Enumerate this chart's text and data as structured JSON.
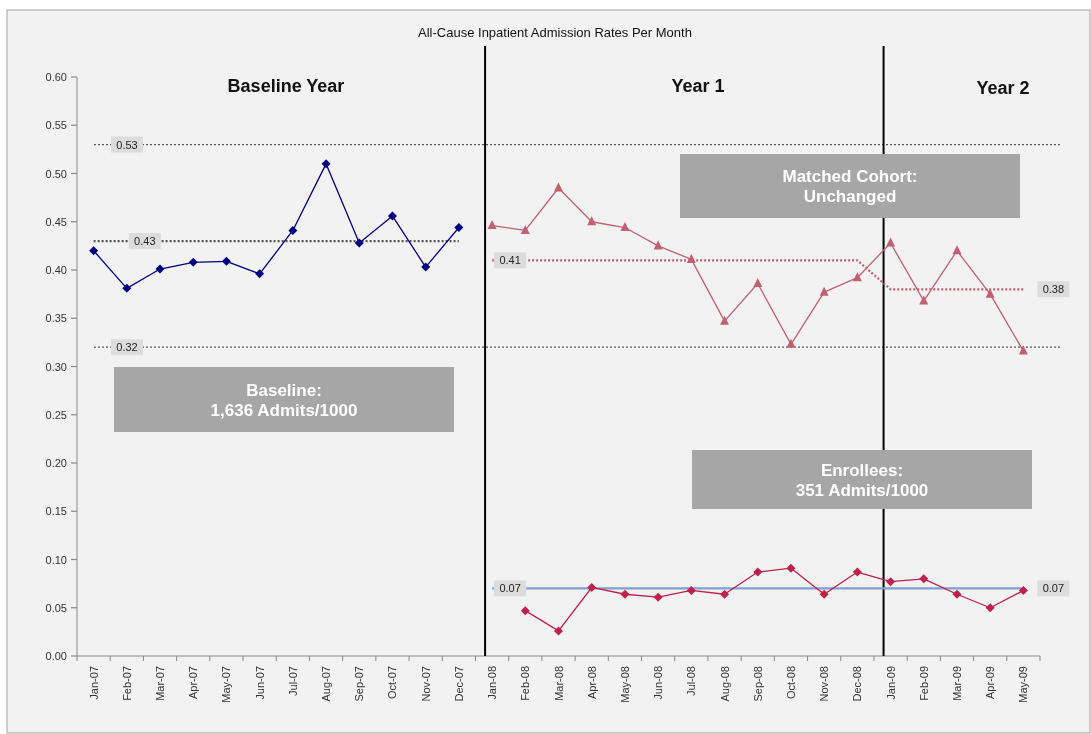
{
  "chart_data": {
    "type": "line",
    "title": "All-Cause Inpatient Admission Rates Per Month",
    "categories": [
      "Jan-07",
      "Feb-07",
      "Mar-07",
      "Apr-07",
      "May-07",
      "Jun-07",
      "Jul-07",
      "Aug-07",
      "Sep-07",
      "Oct-07",
      "Nov-07",
      "Dec-07",
      "Jan-08",
      "Feb-08",
      "Mar-08",
      "Apr-08",
      "May-08",
      "Jun-08",
      "Jul-08",
      "Aug-08",
      "Sep-08",
      "Oct-08",
      "Nov-08",
      "Dec-08",
      "Jan-09",
      "Feb-09",
      "Mar-09",
      "Apr-09",
      "May-09"
    ],
    "series": [
      {
        "color": "#555555",
        "line_style": "dotted",
        "marker": "none",
        "values": [
          0.43,
          0.43,
          0.43,
          0.43,
          0.43,
          0.43,
          0.43,
          0.43,
          0.43,
          0.43,
          0.43,
          0.43,
          null,
          null,
          null,
          null,
          null,
          null,
          null,
          null,
          null,
          null,
          null,
          null,
          null,
          null,
          null,
          null,
          null
        ]
      },
      {
        "color": "#c06070",
        "line_style": "dotted",
        "marker": "none",
        "values": [
          null,
          null,
          null,
          null,
          null,
          null,
          null,
          null,
          null,
          null,
          null,
          null,
          0.41,
          0.41,
          0.41,
          0.41,
          0.41,
          0.41,
          0.41,
          0.41,
          0.41,
          0.41,
          0.41,
          0.41,
          0.38,
          0.38,
          0.38,
          0.38,
          0.38
        ]
      },
      {
        "color": "#7f9fcf",
        "line_style": "solid",
        "marker": "none",
        "values": [
          null,
          null,
          null,
          null,
          null,
          null,
          null,
          null,
          null,
          null,
          null,
          null,
          0.07,
          0.07,
          0.07,
          0.07,
          0.07,
          0.07,
          0.07,
          0.07,
          0.07,
          0.07,
          0.07,
          0.07,
          0.07,
          0.07,
          0.07,
          0.07,
          0.07
        ]
      },
      {
        "color": "#000080",
        "marker": "diamond",
        "values": [
          0.42,
          0.381,
          0.401,
          0.408,
          0.409,
          0.396,
          0.441,
          0.51,
          0.428,
          0.456,
          0.403,
          0.444,
          null,
          null,
          null,
          null,
          null,
          null,
          null,
          null,
          null,
          null,
          null,
          null,
          null,
          null,
          null,
          null,
          null
        ]
      },
      {
        "color": "#c06070",
        "marker": "triangle",
        "values": [
          null,
          null,
          null,
          null,
          null,
          null,
          null,
          null,
          null,
          null,
          null,
          null,
          0.446,
          0.441,
          0.485,
          0.45,
          0.444,
          0.425,
          0.411,
          0.347,
          0.386,
          0.323,
          0.377,
          0.392,
          0.428,
          0.368,
          0.42,
          0.375,
          0.316
        ]
      },
      {
        "color": "#c0204a",
        "marker": "diamond",
        "values": [
          null,
          null,
          null,
          null,
          null,
          null,
          null,
          null,
          null,
          null,
          null,
          null,
          null,
          0.047,
          0.026,
          0.071,
          0.064,
          0.061,
          0.068,
          0.064,
          0.087,
          0.091,
          0.064,
          0.087,
          0.077,
          0.08,
          0.064,
          0.05,
          0.068
        ]
      }
    ],
    "ylim": [
      0,
      0.6
    ],
    "yticks": [
      {
        "value": 0,
        "label": "0.00"
      },
      {
        "value": 0.05,
        "label": "0.05"
      },
      {
        "value": 0.1,
        "label": "0.10"
      },
      {
        "value": 0.15,
        "label": "0.15"
      },
      {
        "value": 0.2,
        "label": "0.20"
      },
      {
        "value": 0.25,
        "label": "0.25"
      },
      {
        "value": 0.3,
        "label": "0.30"
      },
      {
        "value": 0.35,
        "label": "0.35"
      },
      {
        "value": 0.4,
        "label": "0.40"
      },
      {
        "value": 0.45,
        "label": "0.45"
      },
      {
        "value": 0.5,
        "label": "0.50"
      },
      {
        "value": 0.55,
        "label": "0.55"
      },
      {
        "value": 0.6,
        "label": "0.60"
      }
    ],
    "ref_lines": [
      {
        "axis": "y",
        "value": 0.53,
        "label": "0.53",
        "line_style": "dotted",
        "color": "#555555"
      },
      {
        "axis": "y",
        "value": 0.32,
        "label": "0.32",
        "line_style": "dotted",
        "color": "#555555"
      },
      {
        "axis": "x",
        "value": "Jan-08",
        "color": "#000000",
        "line_style": "solid"
      },
      {
        "axis": "x",
        "value": "Jan-09",
        "color": "#000000",
        "line_style": "solid"
      }
    ],
    "annotations": [
      "Baseline Year",
      "Year 1",
      "Year 2",
      "Baseline:\n1,636 Admits/1000",
      "Matched Cohort:\nUnchanged",
      "Enrollees:\n351 Admits/1000",
      {
        "text": "0.43",
        "x": "Feb-07",
        "y": 0.43
      },
      {
        "text": "0.41",
        "x": "Jan-08",
        "y": 0.41
      },
      {
        "text": "0.38",
        "x": "May-09",
        "y": 0.38
      },
      {
        "text": "0.07",
        "x": "Jan-08",
        "y": 0.07
      },
      {
        "text": "0.07",
        "x": "May-09",
        "y": 0.07
      }
    ],
    "grid": false
  }
}
